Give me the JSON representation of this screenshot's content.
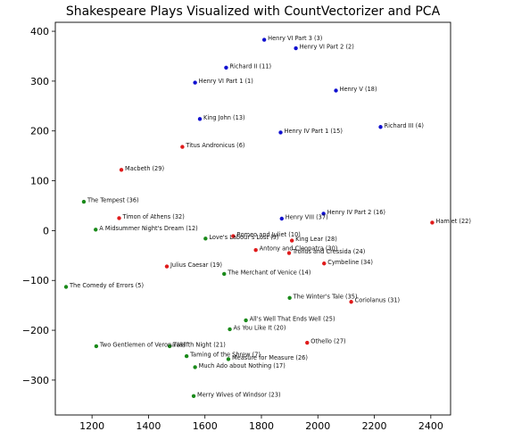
{
  "chart_data": {
    "type": "scatter",
    "title": "Shakespeare Plays Visualized with CountVectorizer and PCA",
    "xlabel": "",
    "ylabel": "",
    "xlim": [
      1070,
      2470
    ],
    "ylim": [
      -370,
      418
    ],
    "xticks": [
      1200,
      1400,
      1600,
      1800,
      2000,
      2200,
      2400
    ],
    "yticks": [
      -300,
      -200,
      -100,
      0,
      100,
      200,
      300,
      400
    ],
    "grid": false,
    "legend": "none",
    "colors": {
      "history": "#1010d0",
      "tragedy": "#e01b1b",
      "comedy": "#1a8a1a"
    },
    "points": [
      {
        "label": "Henry VI Part 3 (3)",
        "x": 1810,
        "y": 383,
        "group": "history"
      },
      {
        "label": "Henry VI Part 2 (2)",
        "x": 1922,
        "y": 366,
        "group": "history"
      },
      {
        "label": "Richard II (11)",
        "x": 1675,
        "y": 327,
        "group": "history"
      },
      {
        "label": "Henry VI Part 1 (1)",
        "x": 1565,
        "y": 297,
        "group": "history"
      },
      {
        "label": "Henry V (18)",
        "x": 2064,
        "y": 281,
        "group": "history"
      },
      {
        "label": "King John (13)",
        "x": 1582,
        "y": 224,
        "group": "history"
      },
      {
        "label": "Richard III (4)",
        "x": 2222,
        "y": 208,
        "group": "history"
      },
      {
        "label": "Henry IV Part 1 (15)",
        "x": 1868,
        "y": 197,
        "group": "history"
      },
      {
        "label": "Titus Andronicus (6)",
        "x": 1520,
        "y": 168,
        "group": "tragedy"
      },
      {
        "label": "Macbeth (29)",
        "x": 1304,
        "y": 122,
        "group": "tragedy"
      },
      {
        "label": "The Tempest (36)",
        "x": 1171,
        "y": 58,
        "group": "comedy"
      },
      {
        "label": "Henry IV Part 2 (16)",
        "x": 2020,
        "y": 34,
        "group": "history"
      },
      {
        "label": "Timon of Athens (32)",
        "x": 1296,
        "y": 25,
        "group": "tragedy"
      },
      {
        "label": "Henry VIII (37)",
        "x": 1872,
        "y": 24,
        "group": "history"
      },
      {
        "label": "Hamlet (22)",
        "x": 2405,
        "y": 16,
        "group": "tragedy"
      },
      {
        "label": "A Midsummer Night's Dream (12)",
        "x": 1213,
        "y": 2,
        "group": "comedy"
      },
      {
        "label": "Romeo and Juliet (10)",
        "x": 1700,
        "y": -11,
        "group": "tragedy"
      },
      {
        "label": "Love's Labour's Lost (9)",
        "x": 1602,
        "y": -16,
        "group": "comedy"
      },
      {
        "label": "King Lear (28)",
        "x": 1908,
        "y": -20,
        "group": "tragedy"
      },
      {
        "label": "Antony and Cleopatra (30)",
        "x": 1780,
        "y": -39,
        "group": "tragedy"
      },
      {
        "label": "Troilus and Cressida (24)",
        "x": 1898,
        "y": -45,
        "group": "tragedy"
      },
      {
        "label": "Cymbeline (34)",
        "x": 2022,
        "y": -66,
        "group": "tragedy"
      },
      {
        "label": "Julius Caesar (19)",
        "x": 1465,
        "y": -72,
        "group": "tragedy"
      },
      {
        "label": "The Merchant of Venice (14)",
        "x": 1668,
        "y": -87,
        "group": "comedy"
      },
      {
        "label": "The Comedy of Errors (5)",
        "x": 1108,
        "y": -113,
        "group": "comedy"
      },
      {
        "label": "The Winter's Tale (35)",
        "x": 1900,
        "y": -135,
        "group": "comedy"
      },
      {
        "label": "Coriolanus (31)",
        "x": 2118,
        "y": -143,
        "group": "tragedy"
      },
      {
        "label": "All's Well That Ends Well (25)",
        "x": 1745,
        "y": -180,
        "group": "comedy"
      },
      {
        "label": "As You Like It (20)",
        "x": 1688,
        "y": -198,
        "group": "comedy"
      },
      {
        "label": "Othello (27)",
        "x": 1962,
        "y": -225,
        "group": "tragedy"
      },
      {
        "label": "Two Gentlemen of Verona (8)",
        "x": 1215,
        "y": -232,
        "group": "comedy"
      },
      {
        "label": "Twelfth Night (21)",
        "x": 1475,
        "y": -232,
        "group": "comedy"
      },
      {
        "label": "Taming of the Shrew (7)",
        "x": 1535,
        "y": -252,
        "group": "comedy"
      },
      {
        "label": "Measure for Measure (26)",
        "x": 1683,
        "y": -258,
        "group": "comedy"
      },
      {
        "label": "Much Ado about Nothing (17)",
        "x": 1565,
        "y": -274,
        "group": "comedy"
      },
      {
        "label": "Merry Wives of Windsor (23)",
        "x": 1560,
        "y": -332,
        "group": "comedy"
      }
    ]
  }
}
